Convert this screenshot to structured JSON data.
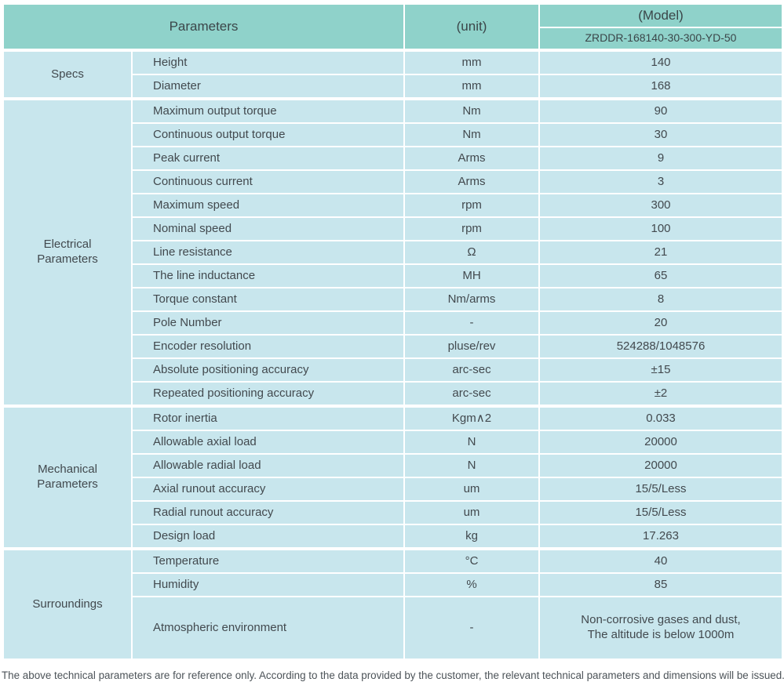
{
  "header": {
    "parameters_label": "Parameters",
    "unit_label": "(unit)",
    "model_label": "(Model)",
    "model_number": "ZRDDR-168140-30-300-YD-50"
  },
  "sections": [
    {
      "group": "Specs",
      "rows": [
        {
          "param": "Height",
          "unit": "mm",
          "value": "140"
        },
        {
          "param": "Diameter",
          "unit": "mm",
          "value": "168"
        }
      ]
    },
    {
      "group": "Electrical\nParameters",
      "rows": [
        {
          "param": "Maximum output torque",
          "unit": "Nm",
          "value": "90"
        },
        {
          "param": "Continuous output torque",
          "unit": "Nm",
          "value": "30"
        },
        {
          "param": "Peak current",
          "unit": "Arms",
          "value": "9"
        },
        {
          "param": "Continuous current",
          "unit": "Arms",
          "value": "3"
        },
        {
          "param": "Maximum speed",
          "unit": "rpm",
          "value": "300"
        },
        {
          "param": "Nominal speed",
          "unit": "rpm",
          "value": "100"
        },
        {
          "param": "Line resistance",
          "unit": "Ω",
          "value": "21"
        },
        {
          "param": "The line inductance",
          "unit": "MH",
          "value": "65"
        },
        {
          "param": "Torque constant",
          "unit": "Nm/arms",
          "value": "8"
        },
        {
          "param": "Pole Number",
          "unit": "-",
          "value": "20"
        },
        {
          "param": "Encoder resolution",
          "unit": "pluse/rev",
          "value": "524288/1048576"
        },
        {
          "param": "Absolute positioning accuracy",
          "unit": "arc-sec",
          "value": "±15"
        },
        {
          "param": "Repeated positioning accuracy",
          "unit": "arc-sec",
          "value": "±2"
        }
      ]
    },
    {
      "group": "Mechanical\nParameters",
      "rows": [
        {
          "param": "Rotor inertia",
          "unit": "Kgm∧2",
          "value": "0.033"
        },
        {
          "param": "Allowable axial load",
          "unit": "N",
          "value": "20000"
        },
        {
          "param": "Allowable radial load",
          "unit": "N",
          "value": "20000"
        },
        {
          "param": "Axial runout accuracy",
          "unit": "um",
          "value": "15/5/Less"
        },
        {
          "param": "Radial runout accuracy",
          "unit": "um",
          "value": "15/5/Less"
        },
        {
          "param": "Design load",
          "unit": "kg",
          "value": "17.263"
        }
      ]
    },
    {
      "group": "Surroundings",
      "rows": [
        {
          "param": "Temperature",
          "unit": "°C",
          "value": "40"
        },
        {
          "param": "Humidity",
          "unit": "%",
          "value": "85"
        },
        {
          "param": "Atmospheric environment",
          "unit": "-",
          "value": "Non-corrosive gases and dust,\nThe altitude is below 1000m",
          "tall": true
        }
      ]
    }
  ],
  "footer": {
    "note": "The above technical parameters are for reference only. According to the data provided by the customer, the relevant technical parameters and dimensions will be issued."
  },
  "colors": {
    "header_bg": "#8fd2ca",
    "row_bg": "#c8e6ed",
    "separator": "#ffffff",
    "text": "#42494e"
  }
}
